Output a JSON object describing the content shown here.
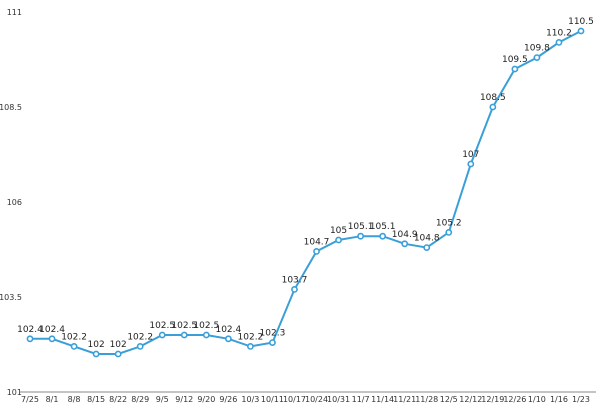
{
  "chart_data": {
    "type": "line",
    "title": "",
    "xlabel": "",
    "ylabel": "",
    "ylim": [
      101,
      111
    ],
    "yticks": [
      101,
      103.5,
      106,
      108.5,
      111
    ],
    "grid": false,
    "legend": "none",
    "colors": {
      "line": "#3a9fd8",
      "marker_fill": "#ffffff",
      "axis": "#888888"
    },
    "categories": [
      "7/25",
      "8/1",
      "8/8",
      "8/15",
      "8/22",
      "8/29",
      "9/5",
      "9/12",
      "9/20",
      "9/26",
      "10/3",
      "10/11",
      "10/17",
      "10/24",
      "10/31",
      "11/7",
      "11/14",
      "11/21",
      "11/28",
      "12/5",
      "12/12",
      "12/19",
      "12/26",
      "1/10",
      "1/16",
      "1/23"
    ],
    "series": [
      {
        "values": [
          102.4,
          102.4,
          102.2,
          102,
          102,
          102.2,
          102.5,
          102.5,
          102.5,
          102.4,
          102.2,
          102.3,
          103.7,
          104.7,
          105,
          105.1,
          105.1,
          104.9,
          104.8,
          105.2,
          107,
          108.5,
          109.5,
          109.8,
          110.2,
          110.5
        ]
      }
    ]
  }
}
